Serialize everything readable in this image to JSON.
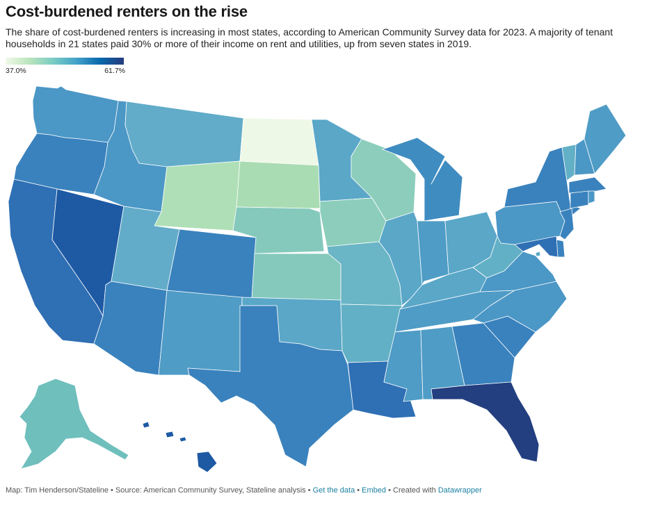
{
  "header": {
    "title": "Cost-burdened renters on the rise",
    "description": "The share of cost-burdened renters is increasing in most states, according to American Community Survey data for 2023. A majority of tenant households in 21 states paid 30% or more of their income on rent and utilities, up from seven states in 2019."
  },
  "legend": {
    "min_label": "37.0%",
    "max_label": "61.7%"
  },
  "map": {
    "states": [
      {
        "id": "WA",
        "name": "Washington",
        "fill": "#4b97c6"
      },
      {
        "id": "OR",
        "name": "Oregon",
        "fill": "#3a82bd"
      },
      {
        "id": "CA",
        "name": "California",
        "fill": "#2f6fb4"
      },
      {
        "id": "NV",
        "name": "Nevada",
        "fill": "#1e5aa4"
      },
      {
        "id": "ID",
        "name": "Idaho",
        "fill": "#4b97c6"
      },
      {
        "id": "MT",
        "name": "Montana",
        "fill": "#62acc9"
      },
      {
        "id": "WY",
        "name": "Wyoming",
        "fill": "#afdfb6"
      },
      {
        "id": "UT",
        "name": "Utah",
        "fill": "#62acc9"
      },
      {
        "id": "AZ",
        "name": "Arizona",
        "fill": "#3a82bd"
      },
      {
        "id": "CO",
        "name": "Colorado",
        "fill": "#3a82bd"
      },
      {
        "id": "NM",
        "name": "New Mexico",
        "fill": "#4f9cc6"
      },
      {
        "id": "ND",
        "name": "North Dakota",
        "fill": "#eef8e6"
      },
      {
        "id": "SD",
        "name": "South Dakota",
        "fill": "#a9dcb2"
      },
      {
        "id": "NE",
        "name": "Nebraska",
        "fill": "#85c9bd"
      },
      {
        "id": "KS",
        "name": "Kansas",
        "fill": "#85c9bd"
      },
      {
        "id": "OK",
        "name": "Oklahoma",
        "fill": "#5aa7c8"
      },
      {
        "id": "TX",
        "name": "Texas",
        "fill": "#3a82bd"
      },
      {
        "id": "MN",
        "name": "Minnesota",
        "fill": "#5aa7c8"
      },
      {
        "id": "IA",
        "name": "Iowa",
        "fill": "#8ccebb"
      },
      {
        "id": "MO",
        "name": "Missouri",
        "fill": "#6ab5c6"
      },
      {
        "id": "AR",
        "name": "Arkansas",
        "fill": "#62b0c5"
      },
      {
        "id": "LA",
        "name": "Louisiana",
        "fill": "#2f6fb4"
      },
      {
        "id": "WI",
        "name": "Wisconsin",
        "fill": "#8ccebb"
      },
      {
        "id": "IL",
        "name": "Illinois",
        "fill": "#5aa7c8"
      },
      {
        "id": "MI",
        "name": "Michigan",
        "fill": "#3f8cc1"
      },
      {
        "id": "IN",
        "name": "Indiana",
        "fill": "#4f9cc6"
      },
      {
        "id": "OH",
        "name": "Ohio",
        "fill": "#5aa7c8"
      },
      {
        "id": "KY",
        "name": "Kentucky",
        "fill": "#5aa7c8"
      },
      {
        "id": "TN",
        "name": "Tennessee",
        "fill": "#4f9cc6"
      },
      {
        "id": "MS",
        "name": "Mississippi",
        "fill": "#4f9cc6"
      },
      {
        "id": "AL",
        "name": "Alabama",
        "fill": "#4f9cc6"
      },
      {
        "id": "GA",
        "name": "Georgia",
        "fill": "#3a82bd"
      },
      {
        "id": "FL",
        "name": "Florida",
        "fill": "#233f80"
      },
      {
        "id": "SC",
        "name": "South Carolina",
        "fill": "#3a82bd"
      },
      {
        "id": "NC",
        "name": "North Carolina",
        "fill": "#4b97c6"
      },
      {
        "id": "VA",
        "name": "Virginia",
        "fill": "#4b97c6"
      },
      {
        "id": "WV",
        "name": "West Virginia",
        "fill": "#62b0c5"
      },
      {
        "id": "PA",
        "name": "Pennsylvania",
        "fill": "#4b97c6"
      },
      {
        "id": "NY",
        "name": "New York",
        "fill": "#3a82bd"
      },
      {
        "id": "VT",
        "name": "Vermont",
        "fill": "#62b0c5"
      },
      {
        "id": "NH",
        "name": "New Hampshire",
        "fill": "#4b97c6"
      },
      {
        "id": "ME",
        "name": "Maine",
        "fill": "#4f9cc6"
      },
      {
        "id": "MA",
        "name": "Massachusetts",
        "fill": "#3a82bd"
      },
      {
        "id": "CT",
        "name": "Connecticut",
        "fill": "#3a82bd"
      },
      {
        "id": "RI",
        "name": "Rhode Island",
        "fill": "#4b97c6"
      },
      {
        "id": "NJ",
        "name": "New Jersey",
        "fill": "#3a82bd"
      },
      {
        "id": "DE",
        "name": "Delaware",
        "fill": "#3a82bd"
      },
      {
        "id": "MD",
        "name": "Maryland",
        "fill": "#2f6fb4"
      },
      {
        "id": "DC",
        "name": "District of Columbia",
        "fill": "#5aa7c8"
      },
      {
        "id": "AK",
        "name": "Alaska",
        "fill": "#6fbfbd"
      },
      {
        "id": "HI",
        "name": "Hawaii",
        "fill": "#1e5aa4"
      }
    ]
  },
  "footer": {
    "credit": "Map: Tim Henderson/Stateline",
    "source": "Source: American Community Survey, Stateline analysis",
    "get_data": "Get the data",
    "embed": "Embed",
    "created_with": "Created with",
    "datawrapper": "Datawrapper",
    "separator": "•"
  },
  "colors": {
    "legend_low": "#f0f9e8",
    "legend_high": "#253b7e",
    "link": "#1d81a2"
  }
}
